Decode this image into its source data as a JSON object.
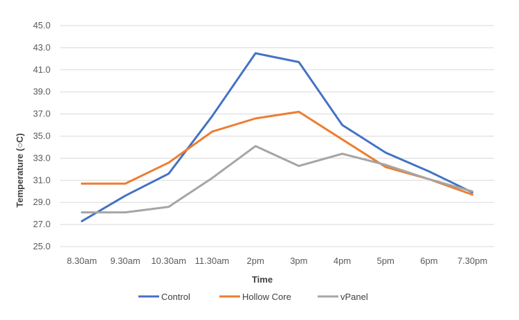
{
  "chart_data": {
    "type": "line",
    "title": "",
    "xlabel": "Time",
    "ylabel": "Temperature (○C)",
    "categories": [
      "8.30am",
      "9.30am",
      "10.30am",
      "11.30am",
      "2pm",
      "3pm",
      "4pm",
      "5pm",
      "6pm",
      "7.30pm"
    ],
    "ylim": [
      25.0,
      45.0
    ],
    "yticks": [
      "25.0",
      "27.0",
      "29.0",
      "31.0",
      "33.0",
      "35.0",
      "37.0",
      "39.0",
      "41.0",
      "43.0",
      "45.0"
    ],
    "grid": true,
    "legend_position": "bottom",
    "series": [
      {
        "name": "Control",
        "color": "#4472C4",
        "values": [
          27.3,
          29.6,
          31.6,
          36.8,
          42.5,
          41.7,
          36.0,
          33.5,
          31.8,
          29.9
        ]
      },
      {
        "name": "Hollow Core",
        "color": "#ED7D31",
        "values": [
          30.7,
          30.7,
          32.6,
          35.4,
          36.6,
          37.2,
          34.7,
          32.2,
          31.1,
          29.7
        ]
      },
      {
        "name": "vPanel",
        "color": "#A5A5A5",
        "values": [
          28.1,
          28.1,
          28.6,
          31.2,
          34.1,
          32.3,
          33.4,
          32.4,
          31.1,
          30.0
        ]
      }
    ]
  }
}
